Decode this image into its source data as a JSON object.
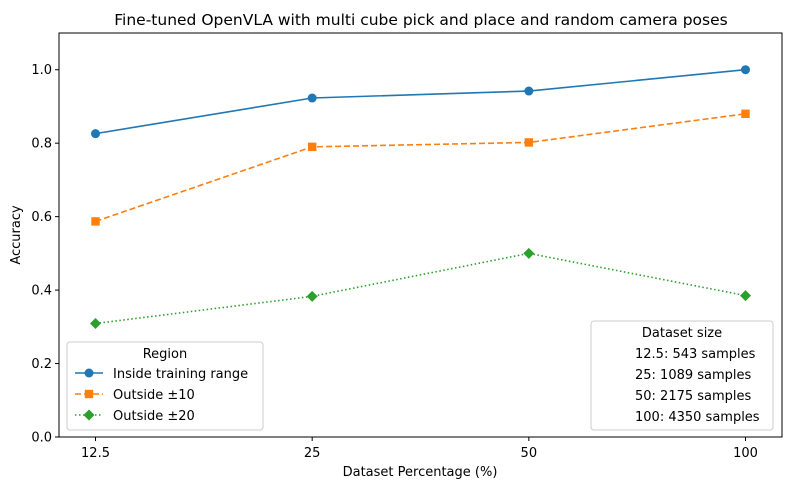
{
  "chart_data": {
    "type": "line",
    "title": "Fine-tuned OpenVLA with multi cube pick and place and random camera poses",
    "xlabel": "Dataset Percentage (%)",
    "ylabel": "Accuracy",
    "categories": [
      "12.5",
      "25",
      "50",
      "100"
    ],
    "ylim": [
      0.0,
      1.1
    ],
    "yticks": [
      "0.0",
      "0.2",
      "0.4",
      "0.6",
      "0.8",
      "1.0"
    ],
    "grid": false,
    "series": [
      {
        "name": "Inside training range",
        "values": [
          0.826,
          0.923,
          0.942,
          1.0
        ],
        "color": "#1f77b4",
        "marker": "circle",
        "linestyle": "solid"
      },
      {
        "name": "Outside ±10",
        "values": [
          0.587,
          0.79,
          0.802,
          0.88
        ],
        "color": "#ff7f0e",
        "marker": "square",
        "linestyle": "dashed"
      },
      {
        "name": "Outside ±20",
        "values": [
          0.309,
          0.383,
          0.5,
          0.385
        ],
        "color": "#2ca02c",
        "marker": "diamond",
        "linestyle": "dotted"
      }
    ],
    "legend": {
      "title": "Region",
      "placement": "lower left"
    },
    "info_box": {
      "title": "Dataset size",
      "placement": "lower right",
      "lines": [
        "12.5: 543 samples",
        "25: 1089 samples",
        "50: 2175 samples",
        "100: 4350 samples"
      ]
    }
  }
}
